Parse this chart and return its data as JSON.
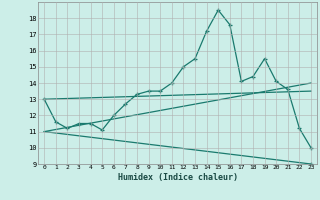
{
  "xlabel": "Humidex (Indice chaleur)",
  "background_color": "#cceee8",
  "grid_color": "#b0b0b0",
  "line_color": "#1a7a6e",
  "xlim": [
    -0.5,
    23.5
  ],
  "ylim": [
    9,
    19
  ],
  "yticks": [
    9,
    10,
    11,
    12,
    13,
    14,
    15,
    16,
    17,
    18
  ],
  "xticks": [
    0,
    1,
    2,
    3,
    4,
    5,
    6,
    7,
    8,
    9,
    10,
    11,
    12,
    13,
    14,
    15,
    16,
    17,
    18,
    19,
    20,
    21,
    22,
    23
  ],
  "line1_x": [
    0,
    1,
    2,
    3,
    4,
    5,
    6,
    7,
    8,
    9,
    10,
    11,
    12,
    13,
    14,
    15,
    16,
    17,
    18,
    19,
    20,
    21,
    22,
    23
  ],
  "line1_y": [
    13.0,
    11.6,
    11.2,
    11.5,
    11.5,
    11.1,
    12.0,
    12.7,
    13.3,
    13.5,
    13.5,
    14.0,
    15.0,
    15.5,
    17.2,
    18.5,
    17.6,
    14.1,
    14.4,
    15.5,
    14.1,
    13.6,
    11.2,
    10.0
  ],
  "line2_x": [
    0,
    23
  ],
  "line2_y": [
    13.0,
    13.5
  ],
  "line3_x": [
    0,
    23
  ],
  "line3_y": [
    11.0,
    14.0
  ],
  "line4_x": [
    0,
    23
  ],
  "line4_y": [
    11.0,
    9.0
  ],
  "last_x": 23,
  "last_y": 9.0
}
